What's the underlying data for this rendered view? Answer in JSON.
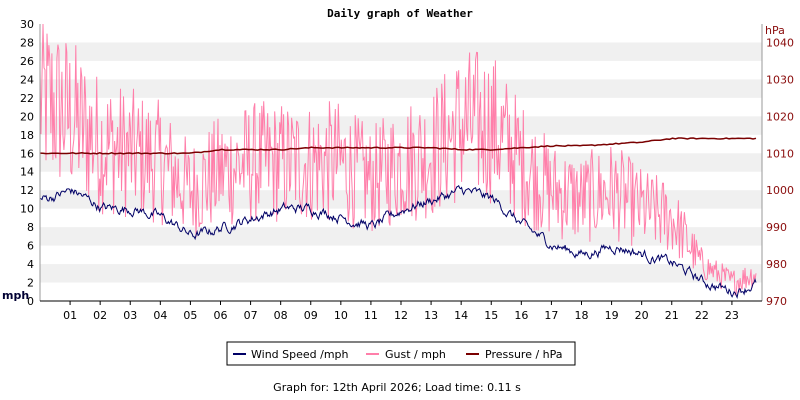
{
  "title": "Daily graph of Weather",
  "footer": "Graph for: 12th April 2026; Load time: 0.11 s",
  "colors": {
    "wind": "#000066",
    "gust": "#ff7faa",
    "pressure": "#7a0000",
    "band": "#f0f0f0",
    "right_axis_text": "#8a0c0c"
  },
  "chart_data": {
    "type": "line",
    "grid": "horizontal bands",
    "legend_position": "bottom-center",
    "x": [
      0,
      1,
      2,
      3,
      4,
      5,
      6,
      7,
      8,
      9,
      10,
      11,
      12,
      13,
      14,
      15,
      16,
      17,
      18,
      19,
      20,
      21,
      22,
      23,
      23.8
    ],
    "x_tick_labels": [
      "01",
      "02",
      "03",
      "04",
      "05",
      "06",
      "07",
      "08",
      "09",
      "10",
      "11",
      "12",
      "13",
      "14",
      "15",
      "16",
      "17",
      "18",
      "19",
      "20",
      "21",
      "22",
      "23"
    ],
    "left_axis": {
      "unit": "mph",
      "ylim": [
        0,
        30
      ],
      "ticks": [
        0,
        2,
        4,
        6,
        8,
        10,
        12,
        14,
        16,
        18,
        20,
        22,
        24,
        26,
        28,
        30
      ]
    },
    "right_axis": {
      "unit": "hPa",
      "ylim": [
        970,
        1045
      ],
      "ticks": [
        970,
        980,
        990,
        1000,
        1010,
        1020,
        1030,
        1040
      ]
    },
    "series": [
      {
        "name": "Wind Speed /mph",
        "axis": "left",
        "values": [
          11,
          12,
          10,
          10,
          9,
          7,
          8,
          9,
          10,
          10,
          9,
          8,
          10,
          11,
          12,
          11,
          8,
          6,
          5,
          6,
          5,
          4,
          2,
          1,
          2
        ]
      },
      {
        "name": "Gust / mph",
        "axis": "left",
        "values": [
          22,
          20,
          17,
          16,
          15,
          12,
          14,
          15,
          15,
          15,
          15,
          13,
          15,
          16,
          19,
          19,
          15,
          12,
          11,
          12,
          10,
          9,
          4,
          2,
          3
        ]
      },
      {
        "name": "Pressure / hPa",
        "axis": "right",
        "values": [
          1010,
          1010,
          1010,
          1010,
          1010,
          1010,
          1011,
          1011,
          1011,
          1011.5,
          1011.5,
          1011.5,
          1011.5,
          1011.5,
          1011,
          1011,
          1011.5,
          1012,
          1012,
          1012.5,
          1013,
          1014,
          1014,
          1014,
          1014
        ]
      }
    ]
  }
}
